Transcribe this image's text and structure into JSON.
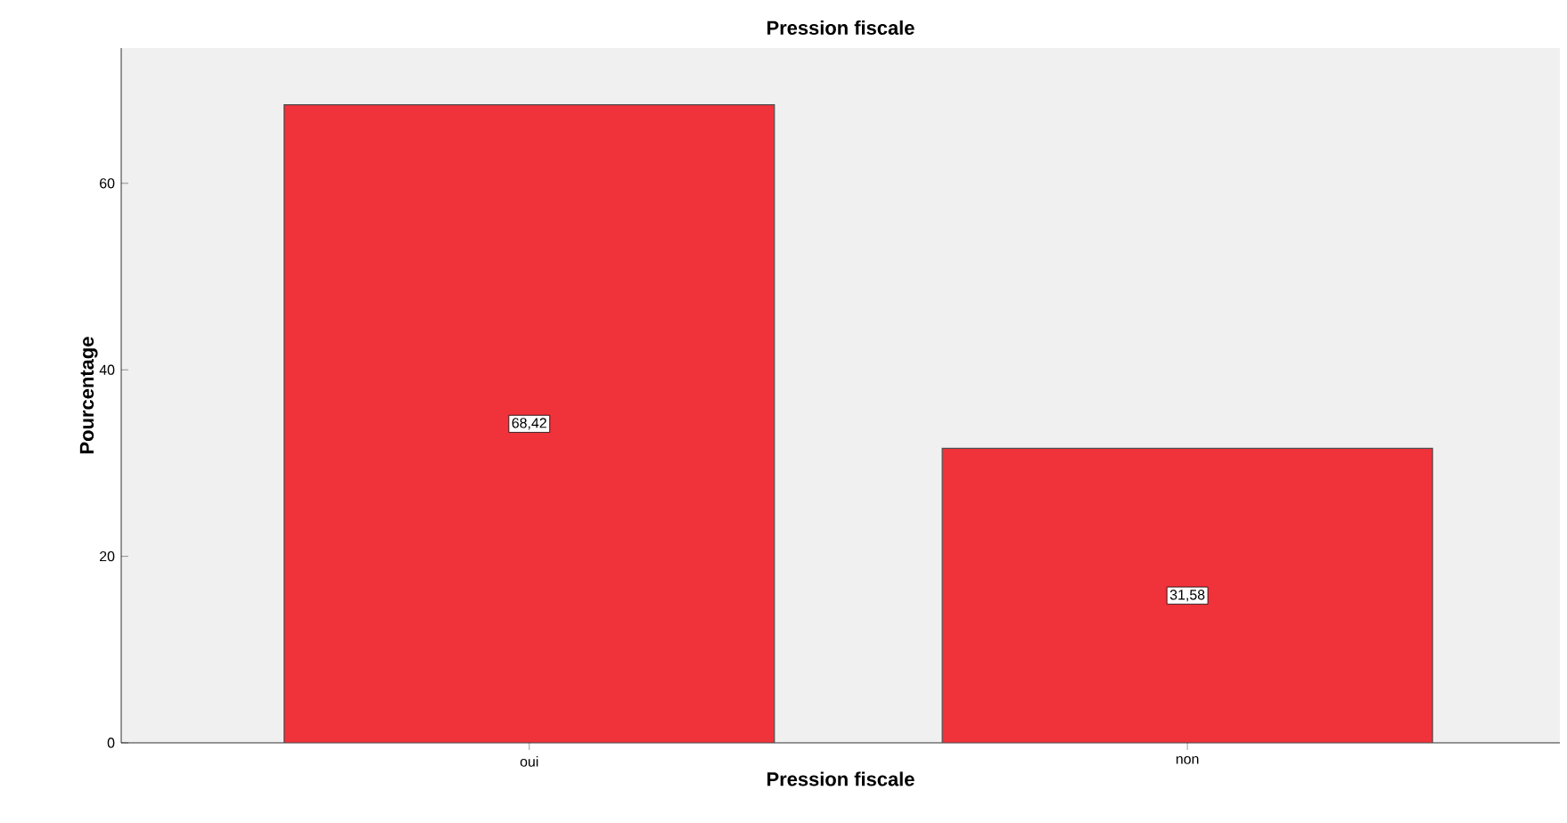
{
  "chart_data": {
    "type": "bar",
    "title": "Pression fiscale",
    "xlabel": "Pression fiscale",
    "ylabel": "Pourcentage",
    "categories": [
      "oui",
      "non"
    ],
    "values": [
      68.42,
      31.58
    ],
    "value_labels": [
      "68,42",
      "31,58"
    ],
    "color": "#f0323a",
    "ylim": [
      0,
      74.5
    ],
    "yticks": [
      0,
      20,
      40,
      60
    ]
  }
}
